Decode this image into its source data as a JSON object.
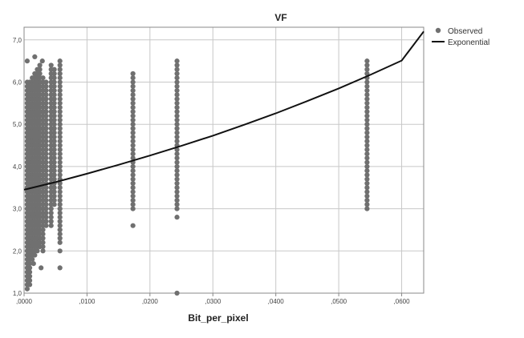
{
  "chart_data": {
    "type": "scatter",
    "title": "VF",
    "xlabel": "Bit_per_pixel",
    "ylabel": "",
    "xlim": [
      0,
      0.0635
    ],
    "ylim": [
      1.0,
      7.3
    ],
    "x_ticks": [
      ",0000",
      ",0100",
      ",0200",
      ",0300",
      ",0400",
      ",0500",
      ",0600"
    ],
    "x_tick_values": [
      0,
      0.01,
      0.02,
      0.03,
      0.04,
      0.05,
      0.06
    ],
    "y_ticks": [
      "1,0",
      "2,0",
      "3,0",
      "4,0",
      "5,0",
      "6,0",
      "7,0"
    ],
    "y_tick_values": [
      1,
      2,
      3,
      4,
      5,
      6,
      7
    ],
    "grid": true,
    "legend_position": "top-right",
    "colors": {
      "observed": "#707070",
      "exponential": "#111111",
      "grid": "#c8c8c8"
    },
    "series": [
      {
        "name": "Observed",
        "kind": "points",
        "columns": [
          {
            "x": 0.0005,
            "y_min": 1.1,
            "y_max": 6.0
          },
          {
            "x": 0.0009,
            "y_min": 1.2,
            "y_max": 6.0
          },
          {
            "x": 0.0013,
            "y_min": 1.8,
            "y_max": 6.1
          },
          {
            "x": 0.0017,
            "y_min": 1.9,
            "y_max": 6.2
          },
          {
            "x": 0.0021,
            "y_min": 2.0,
            "y_max": 6.3
          },
          {
            "x": 0.0025,
            "y_min": 2.1,
            "y_max": 6.4
          },
          {
            "x": 0.003,
            "y_min": 2.0,
            "y_max": 6.1
          },
          {
            "x": 0.0035,
            "y_min": 2.6,
            "y_max": 6.0
          },
          {
            "x": 0.0043,
            "y_min": 2.6,
            "y_max": 6.4
          },
          {
            "x": 0.0048,
            "y_min": 3.1,
            "y_max": 6.3
          },
          {
            "x": 0.0057,
            "y_min": 2.2,
            "y_max": 6.5
          },
          {
            "x": 0.0173,
            "y_min": 3.0,
            "y_max": 6.2
          },
          {
            "x": 0.0243,
            "y_min": 3.0,
            "y_max": 6.5
          },
          {
            "x": 0.0545,
            "y_min": 3.0,
            "y_max": 6.5
          }
        ],
        "points": [
          {
            "x": 0.0005,
            "y": 6.5
          },
          {
            "x": 0.0017,
            "y": 6.6
          },
          {
            "x": 0.0029,
            "y": 6.5
          },
          {
            "x": 0.0015,
            "y": 1.7
          },
          {
            "x": 0.0027,
            "y": 1.6
          },
          {
            "x": 0.0057,
            "y": 1.6
          },
          {
            "x": 0.0057,
            "y": 2.0
          },
          {
            "x": 0.0173,
            "y": 2.6
          },
          {
            "x": 0.0243,
            "y": 2.8
          },
          {
            "x": 0.0243,
            "y": 1.0
          }
        ]
      },
      {
        "name": "Exponential",
        "kind": "curve",
        "x": [
          0,
          0.005,
          0.01,
          0.015,
          0.02,
          0.025,
          0.03,
          0.035,
          0.04,
          0.045,
          0.05,
          0.055,
          0.06,
          0.0635
        ],
        "y": [
          3.45,
          3.63,
          3.83,
          4.04,
          4.26,
          4.49,
          4.73,
          4.99,
          5.26,
          5.55,
          5.85,
          6.17,
          6.51,
          7.2
        ]
      }
    ]
  }
}
